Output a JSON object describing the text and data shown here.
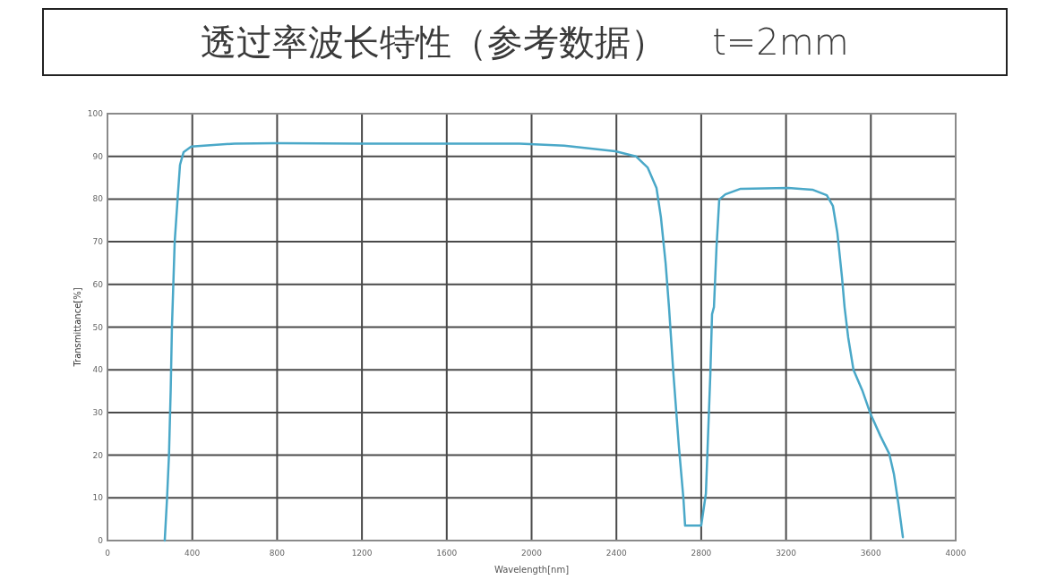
{
  "chart_data": {
    "type": "line",
    "title": "透过率波长特性（参考数据）    t=2mm",
    "xlabel": "Wavelength[nm]",
    "ylabel": "Transmittance[%]",
    "x": [
      270,
      281,
      290,
      298,
      304,
      317,
      332,
      342,
      359,
      395,
      600,
      800,
      1200,
      1600,
      1943,
      2154,
      2395,
      2492,
      2547,
      2589,
      2610,
      2632,
      2648,
      2669,
      2695,
      2716,
      2724,
      2800,
      2822,
      2843,
      2851,
      2860,
      2872,
      2885,
      2914,
      2986,
      3210,
      3324,
      3392,
      3421,
      3442,
      3464,
      3476,
      3493,
      3518,
      3561,
      3599,
      3645,
      3687,
      3709,
      3730,
      3751
    ],
    "series": [
      {
        "color": "#4aa8c8",
        "values": [
          0,
          10,
          20,
          35,
          50,
          70,
          81,
          88,
          91,
          92.3,
          93,
          93.1,
          93,
          93,
          93,
          92.5,
          91.2,
          90,
          87.4,
          82.6,
          75.7,
          65,
          54.7,
          39,
          21.8,
          9.9,
          3.5,
          3.5,
          11,
          39,
          53,
          54.7,
          68.6,
          79.9,
          81.1,
          82.4,
          82.6,
          82.2,
          80.9,
          78.4,
          72.1,
          61.6,
          54.7,
          47.6,
          40,
          35,
          29.6,
          24.5,
          20.3,
          15.5,
          8.6,
          0.8
        ]
      }
    ],
    "xlim": [
      0,
      4000
    ],
    "xticks": [
      0,
      400,
      800,
      1200,
      1600,
      2000,
      2400,
      2800,
      3200,
      3600,
      4000
    ],
    "ylim": [
      0,
      100
    ],
    "yticks": [
      0,
      10,
      20,
      30,
      40,
      50,
      60,
      70,
      80,
      90,
      100
    ],
    "grid": true,
    "line_style": "solid"
  }
}
